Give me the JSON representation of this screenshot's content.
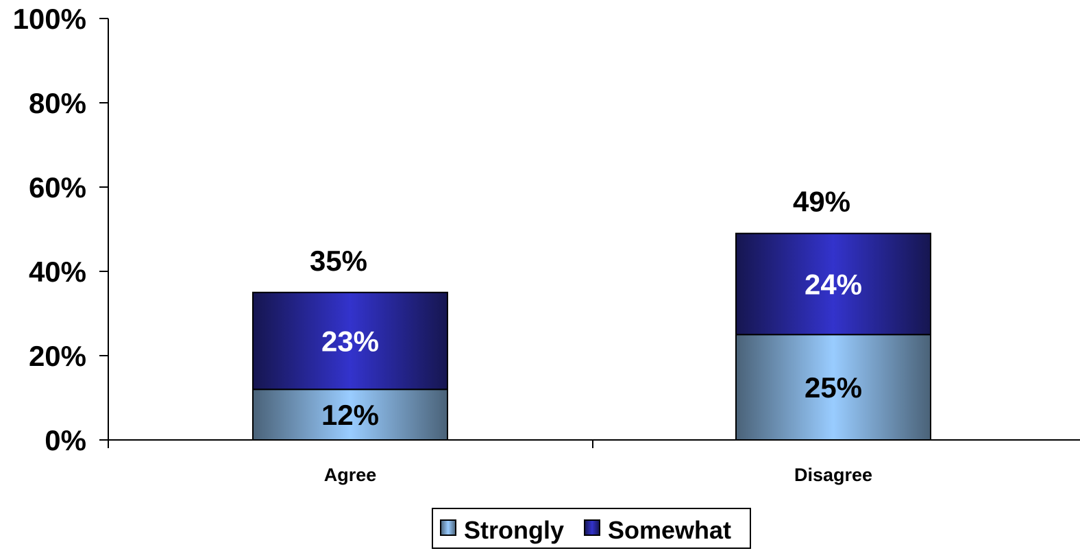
{
  "chart_data": {
    "type": "bar",
    "stacked": true,
    "categories": [
      "Agree",
      "Disagree"
    ],
    "series": [
      {
        "name": "Strongly",
        "values": [
          12,
          25
        ],
        "labels": [
          "12%",
          "25%"
        ],
        "color": "#99CCFF",
        "shade": "#4A6278",
        "label_color": "#000000"
      },
      {
        "name": "Somewhat",
        "values": [
          23,
          24
        ],
        "labels": [
          "23%",
          "24%"
        ],
        "color": "#3333CC",
        "shade": "#161650",
        "label_color": "#FFFFFF"
      }
    ],
    "totals": [
      35,
      49
    ],
    "total_labels": [
      "35%",
      "49%"
    ],
    "ylim": [
      0,
      100
    ],
    "yticks": [
      0,
      20,
      40,
      60,
      80,
      100
    ],
    "ytick_labels": [
      "0%",
      "20%",
      "40%",
      "60%",
      "80%",
      "100%"
    ],
    "title": "",
    "xlabel": "",
    "ylabel": "",
    "grid": false,
    "legend_position": "bottom"
  }
}
